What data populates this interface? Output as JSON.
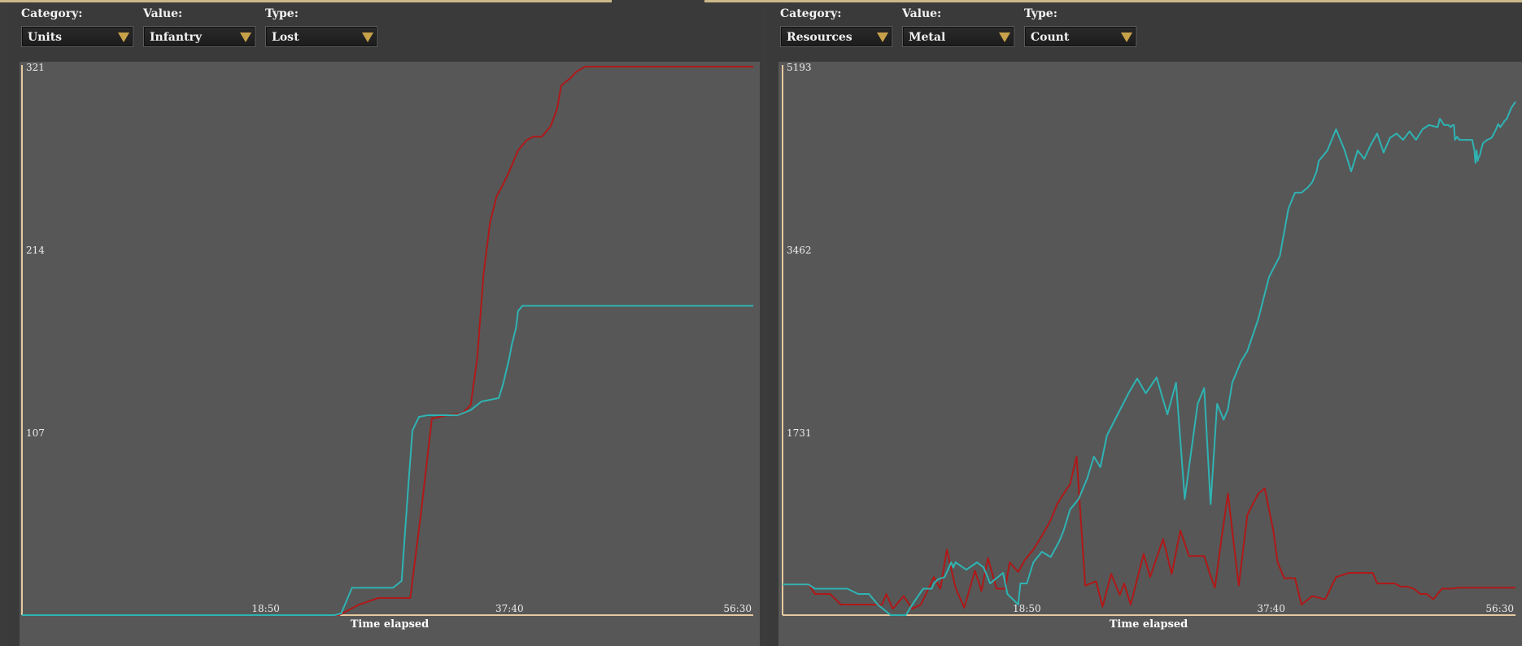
{
  "charts": [
    {
      "controls": {
        "category_label": "Category:",
        "category_value": "Units",
        "value_label": "Value:",
        "value_value": "Infantry",
        "type_label": "Type:",
        "type_value": "Lost"
      }
    },
    {
      "controls": {
        "category_label": "Category:",
        "category_value": "Resources",
        "value_label": "Value:",
        "value_value": "Metal",
        "type_label": "Type:",
        "type_value": "Count"
      }
    }
  ],
  "chart_data": [
    {
      "type": "line",
      "xlabel": "Time elapsed",
      "ylabel": "",
      "x_tick_labels": [
        "18:50",
        "37:40",
        "56:30"
      ],
      "y_tick_labels": [
        "107",
        "214",
        "321"
      ],
      "ylim": [
        0,
        321
      ],
      "xlim": [
        0,
        3390
      ],
      "grid": false,
      "series": [
        {
          "color": "#b01818",
          "points": [
            [
              0,
              0
            ],
            [
              1470,
              0
            ],
            [
              1560,
              6
            ],
            [
              1650,
              10
            ],
            [
              1760,
              10
            ],
            [
              1800,
              10
            ],
            [
              1850,
              60
            ],
            [
              1900,
              115
            ],
            [
              1970,
              117
            ],
            [
              2040,
              118
            ],
            [
              2080,
              123
            ],
            [
              2110,
              150
            ],
            [
              2140,
              200
            ],
            [
              2170,
              230
            ],
            [
              2200,
              245
            ],
            [
              2230,
              252
            ],
            [
              2260,
              260
            ],
            [
              2280,
              266
            ],
            [
              2300,
              272
            ],
            [
              2340,
              278
            ],
            [
              2370,
              280
            ],
            [
              2410,
              280
            ],
            [
              2450,
              286
            ],
            [
              2480,
              296
            ],
            [
              2500,
              310
            ],
            [
              2540,
              314
            ],
            [
              2570,
              318
            ],
            [
              2610,
              321
            ],
            [
              2640,
              321
            ],
            [
              3390,
              321
            ]
          ]
        },
        {
          "color": "#2fb3b3",
          "points": [
            [
              0,
              0
            ],
            [
              1300,
              0
            ],
            [
              1450,
              0
            ],
            [
              1480,
              1
            ],
            [
              1530,
              16
            ],
            [
              1620,
              16
            ],
            [
              1720,
              16
            ],
            [
              1760,
              20
            ],
            [
              1790,
              74
            ],
            [
              1810,
              108
            ],
            [
              1840,
              116
            ],
            [
              1880,
              117
            ],
            [
              1940,
              117
            ],
            [
              2020,
              117
            ],
            [
              2080,
              120
            ],
            [
              2130,
              125
            ],
            [
              2210,
              127
            ],
            [
              2230,
              135
            ],
            [
              2260,
              151
            ],
            [
              2270,
              158
            ],
            [
              2290,
              168
            ],
            [
              2300,
              178
            ],
            [
              2320,
              181
            ],
            [
              2400,
              181
            ],
            [
              3390,
              181
            ]
          ]
        }
      ]
    },
    {
      "type": "line",
      "xlabel": "Time elapsed",
      "ylabel": "",
      "x_tick_labels": [
        "18:50",
        "37:40",
        "56:30"
      ],
      "y_tick_labels": [
        "1731",
        "3462",
        "5193"
      ],
      "ylim": [
        0,
        5193
      ],
      "xlim": [
        0,
        3390
      ],
      "grid": false,
      "series": [
        {
          "color": "#b01818",
          "points": [
            [
              0,
              290
            ],
            [
              120,
              290
            ],
            [
              150,
              200
            ],
            [
              220,
              200
            ],
            [
              270,
              100
            ],
            [
              390,
              100
            ],
            [
              460,
              100
            ],
            [
              480,
              200
            ],
            [
              510,
              60
            ],
            [
              560,
              180
            ],
            [
              600,
              60
            ],
            [
              640,
              100
            ],
            [
              700,
              360
            ],
            [
              730,
              250
            ],
            [
              760,
              620
            ],
            [
              800,
              260
            ],
            [
              840,
              70
            ],
            [
              890,
              420
            ],
            [
              920,
              230
            ],
            [
              950,
              540
            ],
            [
              990,
              250
            ],
            [
              1030,
              250
            ],
            [
              1050,
              500
            ],
            [
              1090,
              410
            ],
            [
              1120,
              520
            ],
            [
              1160,
              620
            ],
            [
              1200,
              750
            ],
            [
              1240,
              900
            ],
            [
              1270,
              1050
            ],
            [
              1300,
              1150
            ],
            [
              1330,
              1240
            ],
            [
              1360,
              1500
            ],
            [
              1400,
              280
            ],
            [
              1450,
              320
            ],
            [
              1480,
              80
            ],
            [
              1520,
              390
            ],
            [
              1560,
              190
            ],
            [
              1580,
              300
            ],
            [
              1610,
              100
            ],
            [
              1670,
              580
            ],
            [
              1700,
              360
            ],
            [
              1720,
              480
            ],
            [
              1760,
              720
            ],
            [
              1800,
              390
            ],
            [
              1840,
              800
            ],
            [
              1880,
              560
            ],
            [
              1920,
              560
            ],
            [
              1950,
              560
            ],
            [
              1980,
              370
            ],
            [
              2000,
              260
            ],
            [
              2030,
              720
            ],
            [
              2060,
              1150
            ],
            [
              2080,
              800
            ],
            [
              2110,
              280
            ],
            [
              2150,
              950
            ],
            [
              2200,
              1150
            ],
            [
              2230,
              1200
            ],
            [
              2270,
              800
            ],
            [
              2290,
              500
            ],
            [
              2320,
              350
            ],
            [
              2370,
              350
            ],
            [
              2400,
              100
            ],
            [
              2450,
              180
            ],
            [
              2510,
              150
            ],
            [
              2560,
              360
            ],
            [
              2620,
              400
            ],
            [
              2680,
              400
            ],
            [
              2730,
              400
            ],
            [
              2750,
              300
            ],
            [
              2790,
              300
            ],
            [
              2830,
              300
            ],
            [
              2860,
              270
            ],
            [
              2890,
              270
            ],
            [
              2920,
              250
            ],
            [
              2950,
              200
            ],
            [
              2980,
              200
            ],
            [
              3010,
              150
            ],
            [
              3050,
              250
            ],
            [
              3090,
              250
            ],
            [
              3130,
              260
            ],
            [
              3390,
              260
            ]
          ]
        },
        {
          "color": "#2fb3b3",
          "points": [
            [
              0,
              290
            ],
            [
              120,
              290
            ],
            [
              150,
              250
            ],
            [
              300,
              250
            ],
            [
              350,
              200
            ],
            [
              400,
              200
            ],
            [
              440,
              100
            ],
            [
              500,
              0
            ],
            [
              570,
              0
            ],
            [
              600,
              100
            ],
            [
              650,
              250
            ],
            [
              690,
              250
            ],
            [
              700,
              300
            ],
            [
              720,
              340
            ],
            [
              750,
              360
            ],
            [
              780,
              500
            ],
            [
              790,
              450
            ],
            [
              800,
              500
            ],
            [
              850,
              430
            ],
            [
              900,
              500
            ],
            [
              930,
              450
            ],
            [
              960,
              300
            ],
            [
              990,
              350
            ],
            [
              1020,
              400
            ],
            [
              1040,
              200
            ],
            [
              1090,
              100
            ],
            [
              1100,
              300
            ],
            [
              1130,
              300
            ],
            [
              1160,
              500
            ],
            [
              1200,
              600
            ],
            [
              1240,
              550
            ],
            [
              1280,
              700
            ],
            [
              1300,
              800
            ],
            [
              1330,
              1000
            ],
            [
              1370,
              1100
            ],
            [
              1410,
              1300
            ],
            [
              1440,
              1500
            ],
            [
              1470,
              1400
            ],
            [
              1500,
              1700
            ],
            [
              1550,
              1900
            ],
            [
              1600,
              2100
            ],
            [
              1640,
              2240
            ],
            [
              1680,
              2100
            ],
            [
              1730,
              2250
            ],
            [
              1780,
              1900
            ],
            [
              1820,
              2200
            ],
            [
              1860,
              1100
            ],
            [
              1920,
              2000
            ],
            [
              1950,
              2150
            ],
            [
              1980,
              1050
            ],
            [
              2010,
              2000
            ],
            [
              2040,
              1850
            ],
            [
              2060,
              1950
            ],
            [
              2080,
              2200
            ],
            [
              2120,
              2400
            ],
            [
              2150,
              2500
            ],
            [
              2200,
              2800
            ],
            [
              2250,
              3200
            ],
            [
              2300,
              3400
            ],
            [
              2340,
              3850
            ],
            [
              2370,
              4000
            ],
            [
              2400,
              4000
            ],
            [
              2430,
              4050
            ],
            [
              2450,
              4100
            ],
            [
              2470,
              4200
            ],
            [
              2480,
              4300
            ],
            [
              2500,
              4350
            ],
            [
              2520,
              4400
            ],
            [
              2560,
              4600
            ],
            [
              2600,
              4400
            ],
            [
              2630,
              4200
            ],
            [
              2660,
              4400
            ],
            [
              2690,
              4320
            ],
            [
              2720,
              4450
            ],
            [
              2750,
              4560
            ],
            [
              2780,
              4380
            ],
            [
              2810,
              4520
            ],
            [
              2840,
              4560
            ],
            [
              2870,
              4500
            ],
            [
              2900,
              4580
            ],
            [
              2930,
              4500
            ],
            [
              2960,
              4600
            ],
            [
              2990,
              4640
            ],
            [
              3030,
              4620
            ],
            [
              3040,
              4700
            ],
            [
              3060,
              4640
            ],
            [
              3080,
              4640
            ],
            [
              3090,
              4620
            ],
            [
              3100,
              4640
            ],
            [
              3105,
              4640
            ],
            [
              3110,
              4500
            ],
            [
              3120,
              4530
            ],
            [
              3130,
              4500
            ],
            [
              3160,
              4500
            ],
            [
              3190,
              4500
            ],
            [
              3200,
              4400
            ],
            [
              3205,
              4280
            ],
            [
              3210,
              4400
            ],
            [
              3215,
              4300
            ],
            [
              3220,
              4340
            ],
            [
              3225,
              4350
            ],
            [
              3230,
              4400
            ],
            [
              3240,
              4470
            ],
            [
              3260,
              4500
            ],
            [
              3280,
              4520
            ],
            [
              3300,
              4600
            ],
            [
              3310,
              4650
            ],
            [
              3320,
              4620
            ],
            [
              3330,
              4650
            ],
            [
              3340,
              4680
            ],
            [
              3350,
              4700
            ],
            [
              3360,
              4750
            ],
            [
              3370,
              4800
            ],
            [
              3390,
              4860
            ]
          ]
        }
      ]
    }
  ]
}
